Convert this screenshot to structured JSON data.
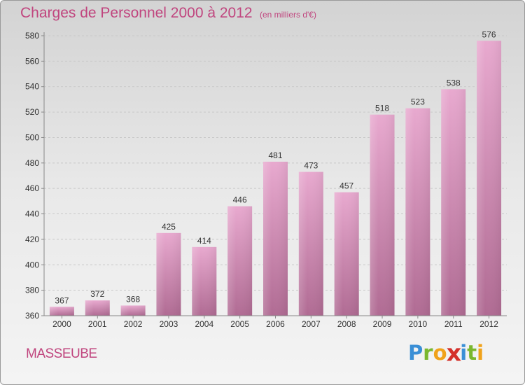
{
  "header": {
    "title": "Charges de Personnel 2000 à 2012",
    "subtitle": "(en milliers d'€)"
  },
  "footer": {
    "region": "MASSEUBE",
    "logo_letters": [
      {
        "ch": "P",
        "color": "#3a8fd6"
      },
      {
        "ch": "r",
        "color": "#7ab72e"
      },
      {
        "ch": "o",
        "color": "#f0a21a"
      },
      {
        "ch": "x",
        "color": "#d4312b"
      },
      {
        "ch": "i",
        "color": "#3a8fd6"
      },
      {
        "ch": "t",
        "color": "#7ab72e"
      },
      {
        "ch": "i",
        "color": "#f0a21a"
      }
    ]
  },
  "colors": {
    "accent": "#c0457e",
    "bar_light": "#e8a9cf",
    "bar_dark": "#b06b93",
    "grid": "#c8c8c8"
  },
  "chart_data": {
    "type": "bar",
    "categories": [
      "2000",
      "2001",
      "2002",
      "2003",
      "2004",
      "2005",
      "2006",
      "2007",
      "2008",
      "2009",
      "2010",
      "2011",
      "2012"
    ],
    "values": [
      367,
      372,
      368,
      425,
      414,
      446,
      481,
      473,
      457,
      518,
      523,
      538,
      576
    ],
    "ylim": [
      360,
      580
    ],
    "yticks": [
      360,
      380,
      400,
      420,
      440,
      460,
      480,
      500,
      520,
      540,
      560,
      580
    ],
    "grid": true,
    "data_labels": true
  }
}
